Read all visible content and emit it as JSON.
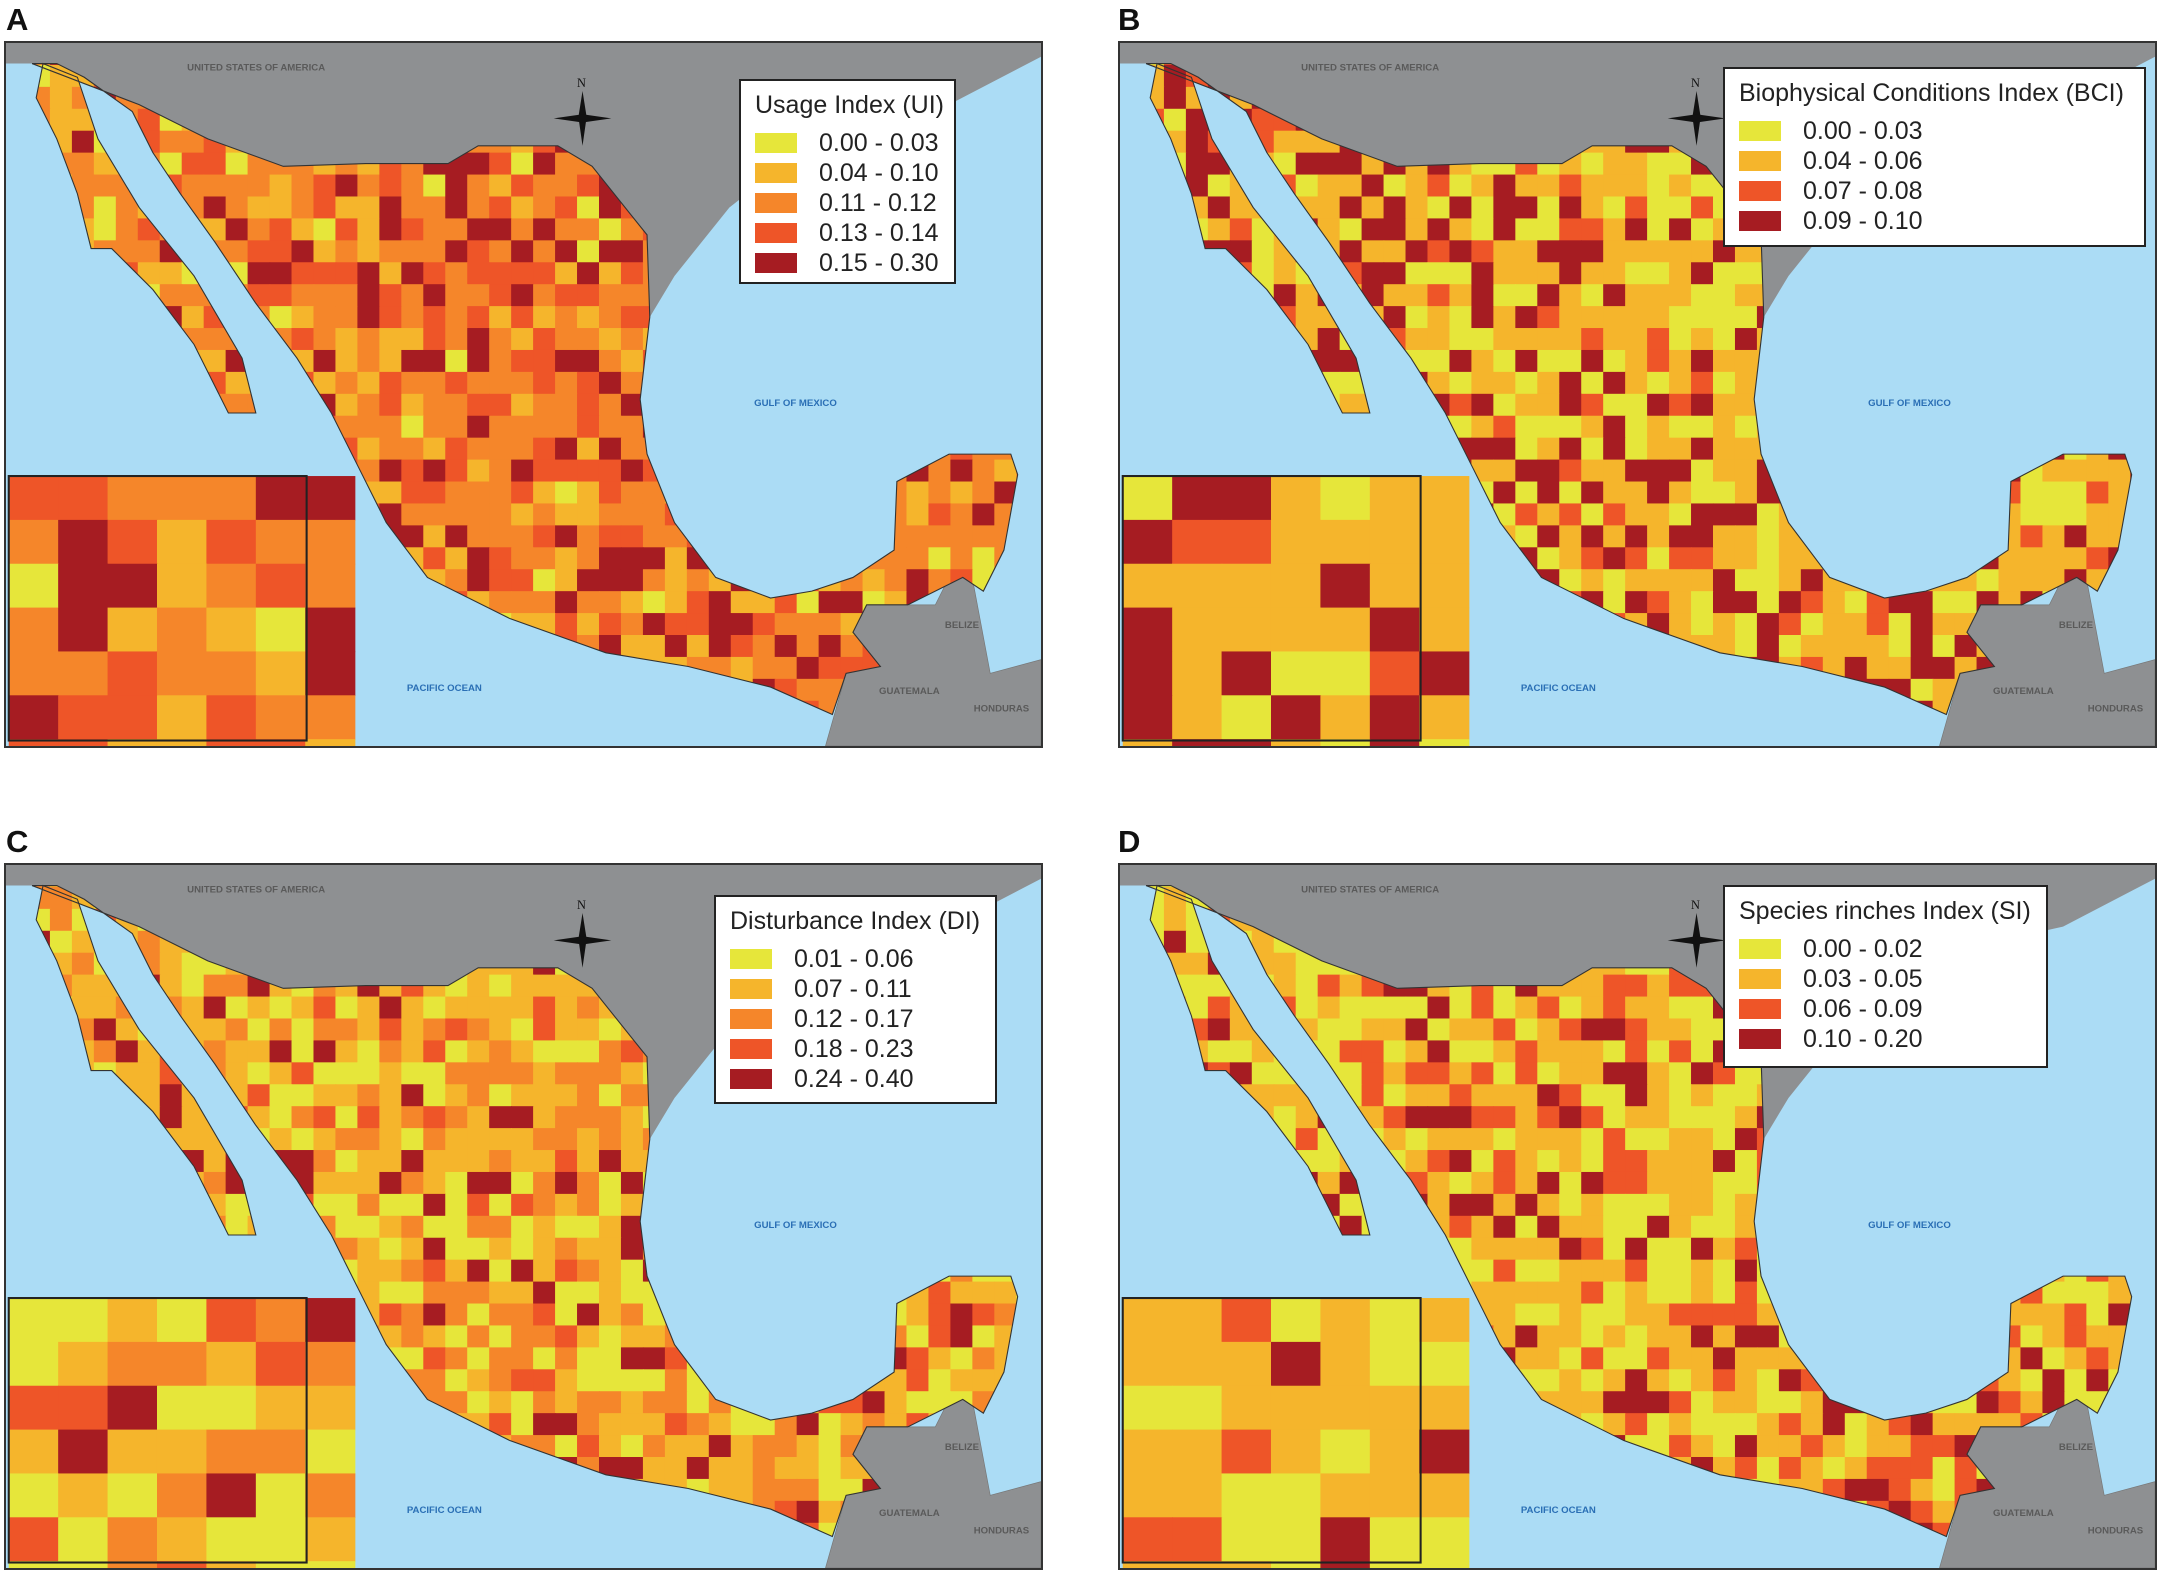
{
  "place_labels": {
    "usa": "UNITED STATES OF AMERICA",
    "gulf": "GULF OF MEXICO",
    "pacific": "PACIFIC OCEAN",
    "belize": "BELIZE",
    "guatemala": "GUATEMALA",
    "honduras": "HONDURAS",
    "north": "N"
  },
  "colors": {
    "ocean": "#abdcf5",
    "land_other": "#8e9092",
    "water_label": "#2a6fb5",
    "land_label": "#5a5a5a"
  },
  "panels": [
    {
      "letter": "A",
      "legend_title": "Usage Index (UI)",
      "classes": [
        {
          "range": "0.00 - 0.03",
          "color": "#e6e63a"
        },
        {
          "range": "0.04 - 0.10",
          "color": "#f5b52c"
        },
        {
          "range": "0.11 - 0.12",
          "color": "#f5862a"
        },
        {
          "range": "0.13 - 0.14",
          "color": "#ee5528"
        },
        {
          "range": "0.15 - 0.30",
          "color": "#a61c22"
        }
      ]
    },
    {
      "letter": "B",
      "legend_title": "Biophysical Conditions Index (BCI)",
      "classes": [
        {
          "range": "0.00 - 0.03",
          "color": "#e6e63a"
        },
        {
          "range": "0.04 - 0.06",
          "color": "#f5b52c"
        },
        {
          "range": "0.07 - 0.08",
          "color": "#ee5528"
        },
        {
          "range": "0.09 - 0.10",
          "color": "#a61c22"
        }
      ]
    },
    {
      "letter": "C",
      "legend_title": "Disturbance Index (DI)",
      "classes": [
        {
          "range": "0.01 - 0.06",
          "color": "#e6e63a"
        },
        {
          "range": "0.07 - 0.11",
          "color": "#f5b52c"
        },
        {
          "range": "0.12 - 0.17",
          "color": "#f5862a"
        },
        {
          "range": "0.18 - 0.23",
          "color": "#ee5528"
        },
        {
          "range": "0.24 - 0.40",
          "color": "#a61c22"
        }
      ]
    },
    {
      "letter": "D",
      "legend_title": "Species rinches Index (SI)",
      "classes": [
        {
          "range": "0.00 - 0.02",
          "color": "#e6e63a"
        },
        {
          "range": "0.03 - 0.05",
          "color": "#f5b52c"
        },
        {
          "range": "0.06 - 0.09",
          "color": "#ee5528"
        },
        {
          "range": "0.10 - 0.20",
          "color": "#a61c22"
        }
      ]
    }
  ]
}
